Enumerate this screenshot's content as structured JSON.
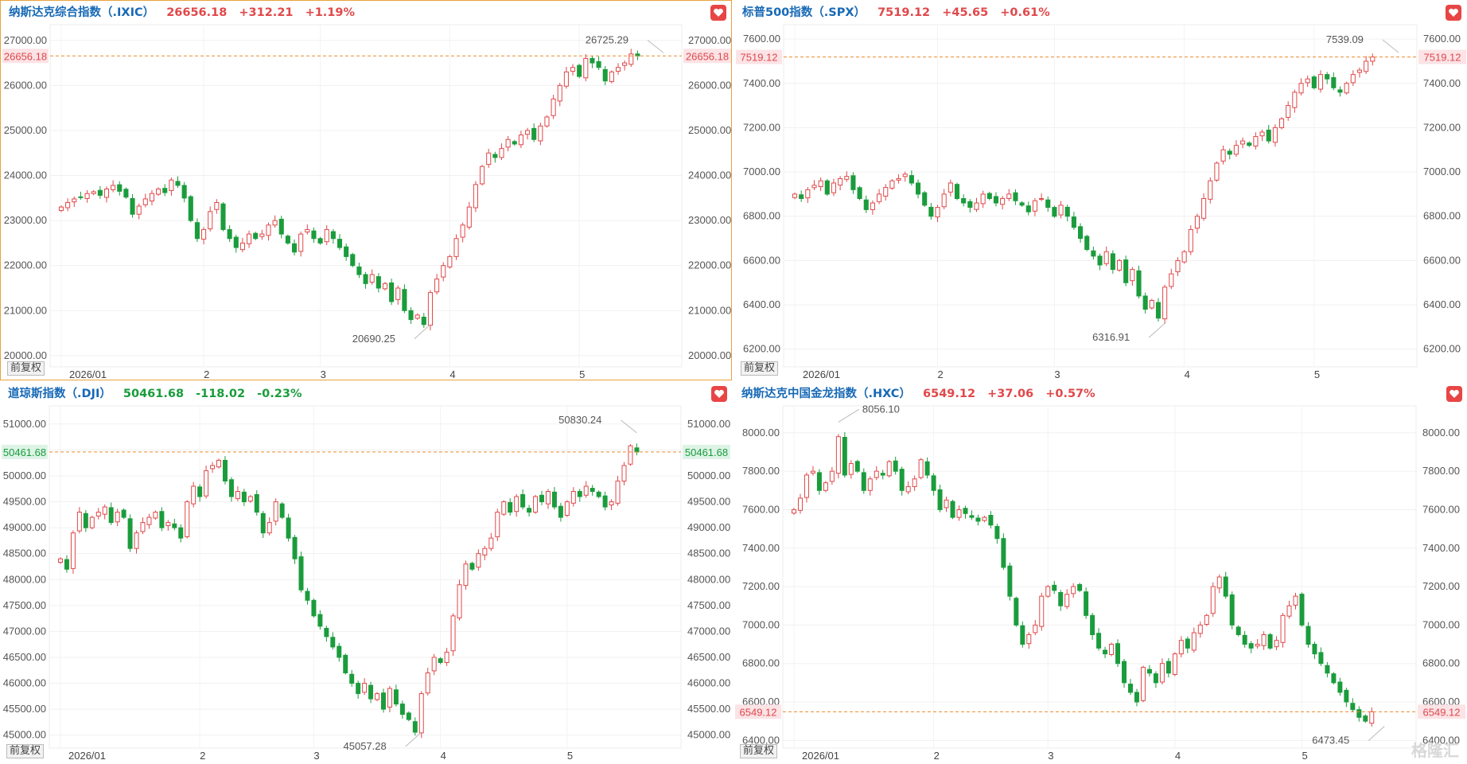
{
  "colors": {
    "up": "#e0484a",
    "down": "#1a9c3c",
    "name": "#1769b6",
    "dashed": "#ec8a2e"
  },
  "adj_label": "前复权",
  "watermark": "格隆汇",
  "chart_data": [
    {
      "type": "candlestick",
      "name": "纳斯达克综合指数（.IXIC）",
      "last": "26656.18",
      "change": "+312.21",
      "pct": "+1.19%",
      "dir": "up",
      "ylim": [
        19750,
        27350
      ],
      "y_ticks": [
        "20000.00",
        "21000.00",
        "22000.00",
        "23000.00",
        "24000.00",
        "25000.00",
        "26000.00",
        "27000.00"
      ],
      "x_ticks": [
        "2026/01",
        "2",
        "3",
        "4",
        "5"
      ],
      "x_tick_idx": [
        0,
        22,
        40,
        60,
        80
      ],
      "current": 26656.18,
      "max_label": "26725.29",
      "max_idx": 93,
      "max_val": 26725.29,
      "min_label": "20690.25",
      "min_idx": 57,
      "min_val": 20690.25,
      "closes": [
        23300,
        23400,
        23480,
        23520,
        23600,
        23640,
        23560,
        23700,
        23780,
        23650,
        23520,
        23140,
        23320,
        23480,
        23600,
        23700,
        23620,
        23900,
        23780,
        23500,
        23000,
        22600,
        22800,
        23200,
        23400,
        22800,
        22600,
        22400,
        22500,
        22700,
        22600,
        22700,
        22900,
        23000,
        22700,
        22500,
        22300,
        22700,
        22800,
        22600,
        22500,
        22800,
        22600,
        22400,
        22200,
        22000,
        21800,
        21600,
        21800,
        21500,
        21600,
        21200,
        21500,
        21000,
        20800,
        20900,
        20690,
        21400,
        21700,
        22000,
        22200,
        22600,
        22900,
        23300,
        23800,
        24200,
        24500,
        24400,
        24600,
        24800,
        24700,
        24900,
        25000,
        24800,
        25100,
        25300,
        25700,
        26000,
        26300,
        26400,
        26200,
        26600,
        26500,
        26400,
        26100,
        26300,
        26400,
        26500,
        26700,
        26656.18
      ]
    },
    {
      "type": "candlestick",
      "name": "标普500指数（.SPX）",
      "last": "7519.12",
      "change": "+45.65",
      "pct": "+0.61%",
      "dir": "up",
      "ylim": [
        6120,
        7665
      ],
      "y_ticks": [
        "6200.00",
        "6400.00",
        "6600.00",
        "6800.00",
        "7000.00",
        "7200.00",
        "7400.00",
        "7600.00"
      ],
      "x_ticks": [
        "2026/01",
        "2",
        "3",
        "4",
        "5"
      ],
      "x_tick_idx": [
        0,
        22,
        40,
        60,
        80
      ],
      "current": 7519.12,
      "max_label": "7539.09",
      "max_idx": 93,
      "max_val": 7539.09,
      "min_label": "6316.91",
      "min_idx": 57,
      "min_val": 6316.91,
      "closes": [
        6900,
        6880,
        6920,
        6940,
        6960,
        6900,
        6950,
        6970,
        6980,
        6920,
        6880,
        6830,
        6860,
        6900,
        6930,
        6960,
        6970,
        6990,
        6950,
        6900,
        6850,
        6800,
        6840,
        6900,
        6950,
        6880,
        6860,
        6840,
        6860,
        6900,
        6880,
        6860,
        6880,
        6900,
        6870,
        6850,
        6820,
        6870,
        6880,
        6840,
        6800,
        6850,
        6800,
        6750,
        6700,
        6650,
        6620,
        6580,
        6640,
        6560,
        6600,
        6500,
        6560,
        6440,
        6380,
        6420,
        6340,
        6480,
        6540,
        6600,
        6640,
        6740,
        6800,
        6880,
        6960,
        7040,
        7100,
        7080,
        7120,
        7140,
        7120,
        7160,
        7180,
        7140,
        7200,
        7240,
        7300,
        7360,
        7400,
        7420,
        7380,
        7440,
        7420,
        7380,
        7360,
        7400,
        7440,
        7460,
        7500,
        7519.12
      ]
    },
    {
      "type": "candlestick",
      "name": "道琼斯指数（.DJI）",
      "last": "50461.68",
      "change": "-118.02",
      "pct": "-0.23%",
      "dir": "down",
      "ylim": [
        44750,
        51350
      ],
      "y_ticks": [
        "45000.00",
        "45500.00",
        "46000.00",
        "46500.00",
        "47000.00",
        "47500.00",
        "48000.00",
        "48500.00",
        "49000.00",
        "49500.00",
        "50000.00",
        "50500.00",
        "51000.00"
      ],
      "x_ticks": [
        "2026/01",
        "2",
        "3",
        "4",
        "5"
      ],
      "x_tick_idx": [
        0,
        22,
        40,
        60,
        80
      ],
      "current": 50461.68,
      "max_label": "50830.24",
      "max_idx": 91,
      "max_val": 50830.24,
      "min_label": "45057.28",
      "min_idx": 57,
      "min_val": 45057.28,
      "closes": [
        48400,
        48200,
        48900,
        49300,
        49000,
        49200,
        49300,
        49400,
        49100,
        49300,
        49200,
        48600,
        48900,
        49100,
        49200,
        49300,
        49000,
        49100,
        49000,
        48800,
        49500,
        49800,
        49600,
        50100,
        50200,
        50300,
        49900,
        49600,
        49700,
        49500,
        49600,
        49300,
        48900,
        49100,
        49500,
        49200,
        48800,
        48400,
        47800,
        47600,
        47300,
        47100,
        46900,
        46700,
        46500,
        46200,
        46000,
        45800,
        46000,
        45700,
        45800,
        45500,
        45900,
        45600,
        45400,
        45300,
        45057,
        45800,
        46200,
        46500,
        46400,
        46600,
        47300,
        47900,
        48300,
        48200,
        48500,
        48600,
        48800,
        49300,
        49500,
        49300,
        49600,
        49400,
        49300,
        49600,
        49500,
        49700,
        49400,
        49200,
        49500,
        49700,
        49600,
        49800,
        49700,
        49600,
        49400,
        49500,
        49900,
        50200,
        50580,
        50461.68
      ]
    },
    {
      "type": "candlestick",
      "name": "纳斯达克中国金龙指数（.HXC）",
      "last": "6549.12",
      "change": "+37.06",
      "pct": "+0.57%",
      "dir": "up",
      "ylim": [
        6360,
        8140
      ],
      "y_ticks": [
        "6400.00",
        "6600.00",
        "6800.00",
        "7000.00",
        "7200.00",
        "7400.00",
        "7600.00",
        "7800.00",
        "8000.00"
      ],
      "x_ticks": [
        "2026/01",
        "2",
        "3",
        "4",
        "5"
      ],
      "x_tick_idx": [
        0,
        22,
        40,
        60,
        80
      ],
      "current": 6549.12,
      "max_label": "8056.10",
      "max_idx": 7,
      "max_val": 8056.1,
      "min_label": "6473.45",
      "min_idx": 93,
      "min_val": 6473.45,
      "closes": [
        7600,
        7660,
        7780,
        7800,
        7700,
        7740,
        7800,
        7980,
        7780,
        7840,
        7800,
        7700,
        7760,
        7800,
        7780,
        7850,
        7800,
        7700,
        7720,
        7760,
        7860,
        7780,
        7700,
        7600,
        7650,
        7560,
        7600,
        7580,
        7560,
        7540,
        7560,
        7520,
        7450,
        7300,
        7150,
        7000,
        6900,
        6950,
        7000,
        7150,
        7200,
        7180,
        7100,
        7160,
        7200,
        7180,
        7050,
        6950,
        6880,
        6850,
        6900,
        6800,
        6700,
        6650,
        6600,
        6780,
        6750,
        6700,
        6800,
        6750,
        6850,
        6920,
        6880,
        6960,
        7000,
        7050,
        7200,
        7250,
        7150,
        7000,
        6950,
        6900,
        6880,
        6900,
        6950,
        6880,
        6920,
        7050,
        7100,
        7150,
        7000,
        6900,
        6850,
        6800,
        6750,
        6700,
        6650,
        6600,
        6560,
        6520,
        6500,
        6549.12
      ]
    }
  ]
}
